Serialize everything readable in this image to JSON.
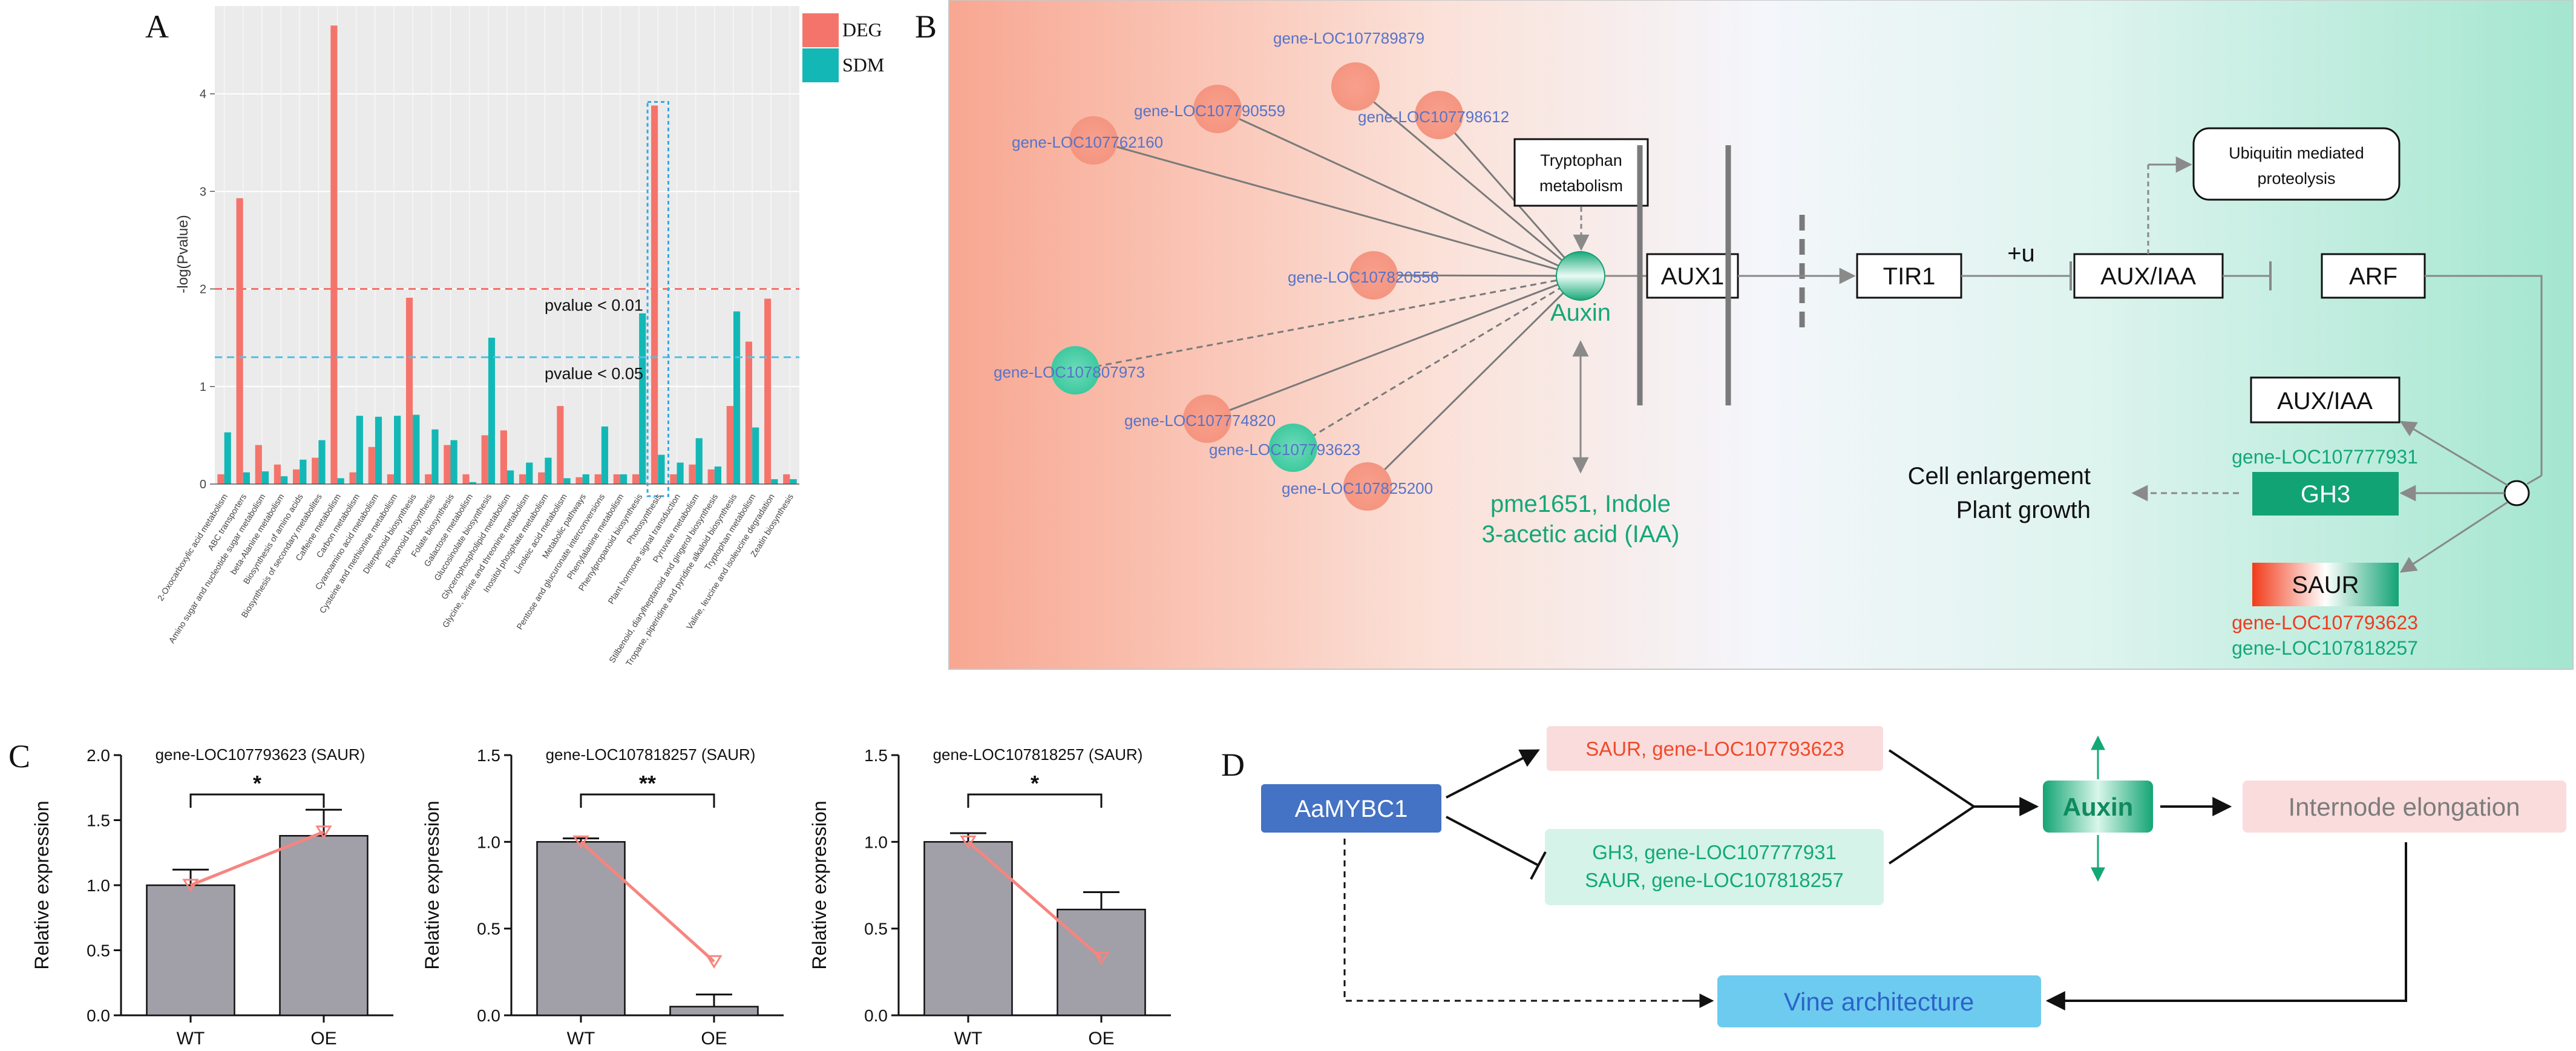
{
  "panel_labels": {
    "a": "A",
    "b": "B",
    "c": "C",
    "d": "D"
  },
  "colors": {
    "deg": "#f4746c",
    "sdm": "#13b8b6",
    "green": "#11a876",
    "blue": "#5773c9",
    "grey_bar": "#a19fa8"
  },
  "panel_a": {
    "legend": [
      "DEG",
      "SDM"
    ],
    "threshold_001": "pvalue < 0.01",
    "threshold_005": "pvalue < 0.05"
  },
  "panel_b": {
    "genes": {
      "g1": "gene-LOC107762160",
      "g2": "gene-LOC107790559",
      "g3": "gene-LOC107789879",
      "g4": "gene-LOC107798612",
      "g5": "gene-LOC107820556",
      "g6": "gene-LOC107807973",
      "g7": "gene-LOC107774820",
      "g8": "gene-LOC107793623",
      "g9": "gene-LOC107825200"
    },
    "tryptophan": [
      "Tryptophan",
      "metabolism"
    ],
    "auxin": "Auxin",
    "metabolite": [
      "pme1651, Indole",
      "3-acetic acid (IAA)"
    ],
    "aux1": "AUX1",
    "tir1": "TIR1",
    "plus_u": "+u",
    "aux_iaa": "AUX/IAA",
    "arf": "ARF",
    "ubiquitin": [
      "Ubiquitin mediated",
      "proteolysis"
    ],
    "aux_iaa_2": "AUX/IAA",
    "gh3_gene": "gene-LOC107777931",
    "gh3": "GH3",
    "saur": "SAUR",
    "saur_gene_red": "gene-LOC107793623",
    "saur_gene_green": "gene-LOC107818257",
    "outcome": [
      "Cell enlargement",
      "Plant growth"
    ]
  },
  "panel_c": {
    "charts": [
      {
        "title": "gene-LOC107793623 (SAUR)",
        "sig": "*"
      },
      {
        "title": "gene-LOC107818257 (SAUR)",
        "sig": "**"
      },
      {
        "title": "gene-LOC107818257 (SAUR)",
        "sig": "*"
      }
    ]
  },
  "panel_d": {
    "aamybc1": "AaMYBC1",
    "saur_up": "SAUR, gene-LOC107793623",
    "gh3_down": "GH3, gene-LOC107777931",
    "saur_down": "SAUR, gene-LOC107818257",
    "auxin": "Auxin",
    "internode": "Internode elongation",
    "vine": "Vine architecture"
  },
  "chart_data": [
    {
      "type": "bar",
      "title": "",
      "ylabel": "-log(Pvalue)",
      "ylim": [
        0,
        4.9
      ],
      "yticks": [
        "0",
        "1",
        "2",
        "3",
        "4"
      ],
      "thresholds": [
        {
          "label": "pvalue < 0.01",
          "value": 2.0
        },
        {
          "label": "pvalue < 0.05",
          "value": 1.3
        }
      ],
      "categories": [
        "2-Oxocarboxylic acid metabolism",
        "ABC transporters",
        "Amino sugar and nucleotide sugar metabolism",
        "beta-Alanine metabolism",
        "Biosynthesis of amino acids",
        "Biosynthesis of secondary metabolites",
        "Caffeine metabolism",
        "Carbon metabolism",
        "Cyanoamino acid metabolism",
        "Cysteine and methionine metabolism",
        "Diterpenoid biosynthesis",
        "Flavonoid biosynthesis",
        "Folate biosynthesis",
        "Galactose metabolism",
        "Glucosinolate biosynthesis",
        "Glycerophospholipid metabolism",
        "Glycine, serine and threonine metabolism",
        "Inositol phosphate metabolism",
        "Linoleic acid metabolism",
        "Metabolic pathways",
        "Pentose and glucuronate interconversions",
        "Phenylalanine metabolism",
        "Phenylpropanoid biosynthesis",
        "Photosynthesis",
        "Plant hormone signal transduction",
        "Pyruvate metabolism",
        "Stilbenoid, diarylheptanoid and gingerol biosynthesis",
        "Tropane, piperidine and pyridine alkaloid biosynthesis",
        "Tryptophan metabolism",
        "Valine, leucine and isoleucine degradation",
        "Zeatin biosynthesis"
      ],
      "series": [
        {
          "name": "DEG",
          "values": [
            0.1,
            2.93,
            0.4,
            0.2,
            0.15,
            0.27,
            4.7,
            0.12,
            0.38,
            0.1,
            1.91,
            0.1,
            0.4,
            0.1,
            0.5,
            0.55,
            0.1,
            0.12,
            0.8,
            0.07,
            0.1,
            0.1,
            0.1,
            3.88,
            0.1,
            0.2,
            0.15,
            0.8,
            1.46,
            1.9,
            0.1
          ]
        },
        {
          "name": "SDM",
          "values": [
            0.53,
            0.12,
            0.13,
            0.08,
            0.25,
            0.45,
            0.06,
            0.7,
            0.69,
            0.7,
            0.71,
            0.56,
            0.45,
            0.02,
            1.5,
            0.14,
            0.22,
            0.27,
            0.06,
            0.1,
            0.59,
            0.1,
            1.75,
            0.3,
            0.22,
            0.47,
            0.18,
            1.77,
            0.58,
            0.05,
            0.05
          ]
        }
      ],
      "legend": "top-right"
    },
    {
      "type": "bar",
      "title": "gene-LOC107793623 (SAUR)",
      "categories": [
        "WT",
        "OE"
      ],
      "values": [
        1.0,
        1.38
      ],
      "errors": [
        0.12,
        0.2
      ],
      "line": [
        1.0,
        1.41
      ],
      "ylabel": "Relative expression",
      "ylim": [
        0,
        2.0
      ],
      "yticks": [
        "0.0",
        "0.5",
        "1.0",
        "1.5",
        "2.0"
      ],
      "significance": "*"
    },
    {
      "type": "bar",
      "title": "gene-LOC107818257 (SAUR)",
      "categories": [
        "WT",
        "OE"
      ],
      "values": [
        1.0,
        0.05
      ],
      "errors": [
        0.02,
        0.07
      ],
      "line": [
        1.0,
        0.31
      ],
      "ylabel": "Relative expression",
      "ylim": [
        0,
        1.5
      ],
      "yticks": [
        "0.0",
        "0.5",
        "1.0",
        "1.5"
      ],
      "significance": "**"
    },
    {
      "type": "bar",
      "title": "gene-LOC107818257 (SAUR)",
      "categories": [
        "WT",
        "OE"
      ],
      "values": [
        1.0,
        0.61
      ],
      "errors": [
        0.05,
        0.1
      ],
      "line": [
        1.0,
        0.33
      ],
      "ylabel": "Relative expression",
      "ylim": [
        0,
        1.5
      ],
      "yticks": [
        "0.0",
        "0.5",
        "1.0",
        "1.5"
      ],
      "significance": "*"
    }
  ]
}
